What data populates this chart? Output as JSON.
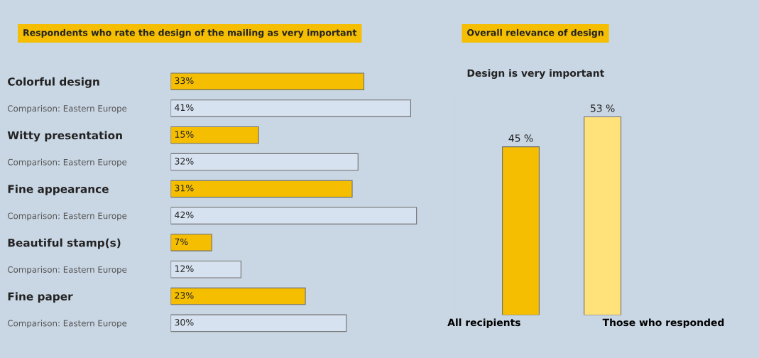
{
  "chart_data": [
    {
      "type": "bar",
      "orientation": "horizontal",
      "title": "Respondents who rate the design of the mailing as very important",
      "categories": [
        "Colorful design",
        "Comparison: Eastern Europe",
        "Witty presentation",
        "Comparison: Eastern Europe",
        "Fine appearance",
        "Comparison: Eastern Europe",
        "Beautiful stamp(s)",
        "Comparison: Eastern Europe",
        "Fine paper",
        "Comparison: Eastern Europe"
      ],
      "values": [
        33,
        41,
        15,
        32,
        31,
        42,
        7,
        12,
        23,
        30
      ],
      "colors": [
        "#f5be00",
        "#d6e2ef",
        "#f5be00",
        "#d6e2ef",
        "#f5be00",
        "#d6e2ef",
        "#f5be00",
        "#d6e2ef",
        "#f5be00",
        "#d6e2ef"
      ],
      "value_labels": [
        "33%",
        "41%",
        "15%",
        "32%",
        "31%",
        "42%",
        "7%",
        "12%",
        "23%",
        "30%"
      ],
      "tick_labels": "y",
      "grid": false,
      "legend": false
    },
    {
      "type": "bar",
      "title": "Overall relevance of design",
      "categories": [
        "All recipients",
        "Those who responded"
      ],
      "values": [
        45,
        53
      ],
      "colors": [
        "#f5be00",
        "#ffe27a"
      ],
      "value_labels": [
        "45 %",
        "53 %"
      ],
      "tick_labels": "x",
      "grid": false,
      "legend": false,
      "annotations": [
        "Design is very important"
      ]
    }
  ]
}
